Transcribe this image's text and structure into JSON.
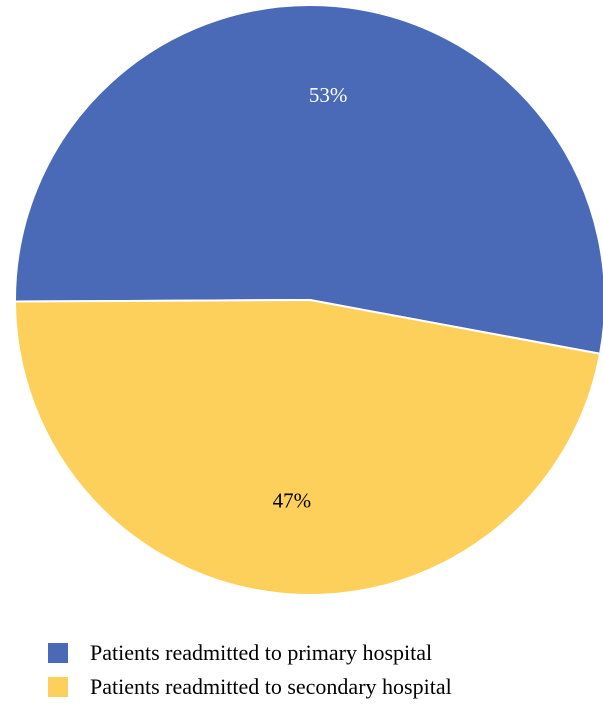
{
  "chart_data": {
    "type": "pie",
    "categories": [
      "Patients readmitted to primary hospital",
      "Patients readmitted to secondary hospital"
    ],
    "values": [
      53,
      47
    ],
    "labels": [
      "53%",
      "47%"
    ],
    "colors": [
      "#4a6ab8",
      "#fdd05c"
    ],
    "legend_position": "bottom"
  }
}
